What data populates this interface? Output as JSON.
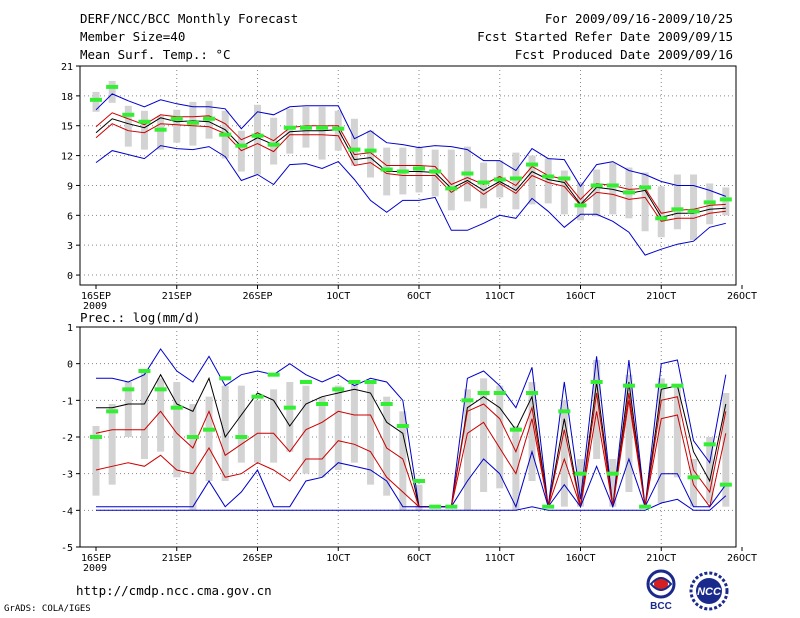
{
  "header": {
    "title": "DERF/NCC/BCC Monthly Forecast",
    "member_size": "Member Size=40",
    "variable": "Mean Surf. Temp.: °C",
    "period": "For 2009/09/16-2009/10/25",
    "started": "Fcst Started Refer Date 2009/09/15",
    "produced": "Fcst Produced Date 2009/09/16"
  },
  "footer": {
    "url": "http://cmdp.ncc.cma.gov.cn",
    "grads": "GrADS: COLA/IGES",
    "logo1_text": "BCC",
    "logo2_text": "NCC"
  },
  "colors": {
    "mean": "#000000",
    "quartile": "#cc0000",
    "extreme": "#0000cc",
    "box": "#d3d3d3",
    "median": "#33ee33"
  },
  "chart_data": [
    {
      "type": "line",
      "title": "Mean Surf. Temp.: °C",
      "x_ticks": [
        "16SEP",
        "21SEP",
        "26SEP",
        "1OCT",
        "6OCT",
        "11OCT",
        "16OCT",
        "21OCT",
        "26OCT"
      ],
      "x_tick_days": [
        0,
        5,
        10,
        15,
        20,
        25,
        30,
        35,
        40
      ],
      "year_label": "2009",
      "ylim": [
        -1,
        21
      ],
      "yticks": [
        0,
        3,
        6,
        9,
        12,
        15,
        18,
        21
      ],
      "series": [
        {
          "name": "max",
          "values": [
            11.3,
            12.5,
            12.1,
            11.7,
            13.0,
            12.7,
            12.6,
            12.9,
            11.9,
            9.5,
            10.1,
            9.1,
            11.1,
            11.2,
            10.7,
            11.4,
            9.6,
            7.5,
            6.3,
            7.5,
            7.5,
            7.8,
            4.5,
            4.5,
            5.2,
            6.0,
            5.7,
            7.7,
            6.4,
            4.8,
            6.1,
            6.1,
            5.4,
            4.3,
            2.0,
            2.6,
            3.1,
            3.4,
            4.8,
            5.2
          ]
        },
        {
          "name": "upper_quartile",
          "values": [
            13.8,
            15.2,
            14.5,
            14.3,
            15.2,
            15.1,
            15.0,
            14.9,
            14.2,
            12.5,
            13.2,
            12.4,
            14.1,
            14.1,
            14.1,
            14.0,
            11.0,
            11.3,
            10.2,
            10.0,
            10.0,
            10.0,
            8.3,
            9.3,
            8.1,
            9.2,
            8.2,
            10.0,
            9.3,
            8.9,
            7.0,
            8.3,
            8.1,
            7.6,
            7.8,
            5.4,
            5.7,
            5.7,
            6.2,
            6.4
          ]
        },
        {
          "name": "mean",
          "values": [
            14.3,
            15.7,
            15.2,
            14.8,
            15.8,
            15.4,
            15.5,
            15.4,
            14.6,
            12.9,
            13.8,
            13.1,
            14.4,
            14.5,
            14.5,
            14.6,
            11.6,
            11.8,
            10.4,
            10.4,
            10.4,
            10.3,
            8.7,
            9.5,
            8.5,
            9.4,
            8.5,
            10.4,
            9.6,
            9.3,
            7.1,
            8.8,
            8.6,
            8.2,
            8.5,
            5.8,
            6.2,
            6.2,
            6.6,
            6.7
          ]
        },
        {
          "name": "lower_quartile",
          "values": [
            14.9,
            16.3,
            15.7,
            15.1,
            16.1,
            15.9,
            15.9,
            16.0,
            15.2,
            13.6,
            14.3,
            13.5,
            14.8,
            15.0,
            15.0,
            15.0,
            12.1,
            12.3,
            11.0,
            11.0,
            11.0,
            10.9,
            9.1,
            9.8,
            9.1,
            9.9,
            9.0,
            10.9,
            10.0,
            9.6,
            7.6,
            9.2,
            9.0,
            8.6,
            8.7,
            6.2,
            6.5,
            6.6,
            7.0,
            7.1
          ]
        },
        {
          "name": "min",
          "values": [
            16.6,
            18.2,
            17.5,
            16.9,
            17.6,
            17.2,
            16.9,
            16.9,
            16.7,
            14.7,
            16.4,
            16.1,
            16.9,
            17.0,
            17.0,
            17.0,
            13.7,
            14.5,
            13.3,
            13.1,
            12.8,
            13.0,
            12.9,
            12.6,
            11.5,
            11.5,
            10.5,
            12.7,
            11.7,
            11.6,
            8.9,
            11.1,
            11.4,
            10.5,
            10.1,
            9.4,
            9.0,
            9.0,
            8.5,
            7.9
          ]
        },
        {
          "name": "median",
          "values": [
            17.6,
            18.9,
            16.1,
            15.4,
            14.6,
            15.7,
            15.3,
            15.7,
            14.1,
            13.0,
            14.0,
            13.1,
            14.8,
            14.8,
            14.8,
            14.7,
            12.6,
            12.5,
            10.6,
            10.4,
            10.7,
            10.4,
            8.7,
            10.2,
            9.3,
            9.6,
            9.7,
            11.1,
            9.9,
            9.7,
            7.0,
            9.0,
            9.0,
            8.3,
            8.8,
            5.7,
            6.6,
            6.4,
            7.3,
            7.6
          ]
        }
      ],
      "box_ranges": [
        [
          16.4,
          18.4
        ],
        [
          17.3,
          19.5
        ],
        [
          12.9,
          17.0
        ],
        [
          12.6,
          16.5
        ],
        [
          12.6,
          16.0
        ],
        [
          13.3,
          16.6
        ],
        [
          13.0,
          17.4
        ],
        [
          13.7,
          17.5
        ],
        [
          11.7,
          16.5
        ],
        [
          10.4,
          14.5
        ],
        [
          10.1,
          17.1
        ],
        [
          11.1,
          15.8
        ],
        [
          12.2,
          16.7
        ],
        [
          12.8,
          16.9
        ],
        [
          11.6,
          16.9
        ],
        [
          12.5,
          16.5
        ],
        [
          11.0,
          15.7
        ],
        [
          9.8,
          14.5
        ],
        [
          8.0,
          12.8
        ],
        [
          8.1,
          12.8
        ],
        [
          8.3,
          12.8
        ],
        [
          7.9,
          12.6
        ],
        [
          6.5,
          12.6
        ],
        [
          7.4,
          12.9
        ],
        [
          6.7,
          11.3
        ],
        [
          7.8,
          11.5
        ],
        [
          6.6,
          12.3
        ],
        [
          7.1,
          12.0
        ],
        [
          7.2,
          11.7
        ],
        [
          6.1,
          10.5
        ],
        [
          5.5,
          9.3
        ],
        [
          5.9,
          10.6
        ],
        [
          6.1,
          11.3
        ],
        [
          5.7,
          10.8
        ],
        [
          4.4,
          10.3
        ],
        [
          3.8,
          8.9
        ],
        [
          4.6,
          10.1
        ],
        [
          3.5,
          10.1
        ],
        [
          5.1,
          9.2
        ],
        [
          6.0,
          8.8
        ]
      ]
    },
    {
      "type": "line",
      "title": "Prec.: log(mm/d)",
      "x_ticks": [
        "16SEP",
        "21SEP",
        "26SEP",
        "1OCT",
        "6OCT",
        "11OCT",
        "16OCT",
        "21OCT",
        "26OCT"
      ],
      "x_tick_days": [
        0,
        5,
        10,
        15,
        20,
        25,
        30,
        35,
        40
      ],
      "year_label": "2009",
      "ylim": [
        -5,
        1
      ],
      "yticks": [
        -5,
        -4,
        -3,
        -2,
        -1,
        0,
        1
      ],
      "series": [
        {
          "name": "max",
          "values": [
            -0.4,
            -0.4,
            -0.5,
            -0.3,
            0.4,
            -0.2,
            -0.5,
            0.2,
            -0.6,
            -0.3,
            -0.2,
            -0.3,
            0.0,
            -0.3,
            -0.5,
            -0.3,
            -0.6,
            -0.4,
            -0.5,
            -1.0,
            -3.9,
            -3.9,
            -3.9,
            -0.4,
            -0.2,
            -0.6,
            -1.2,
            -0.1,
            -3.9,
            -0.5,
            -3.7,
            0.2,
            -3.9,
            0.1,
            -3.9,
            0.0,
            0.1,
            -2.1,
            -2.7,
            -0.3
          ]
        },
        {
          "name": "mean",
          "values": [
            -1.2,
            -1.2,
            -1.1,
            -1.1,
            -0.3,
            -1.1,
            -1.3,
            -0.4,
            -2.0,
            -1.4,
            -0.8,
            -1.0,
            -1.7,
            -1.1,
            -0.9,
            -0.8,
            -0.7,
            -0.8,
            -1.6,
            -1.9,
            -3.9,
            -3.9,
            -3.9,
            -1.2,
            -0.9,
            -1.2,
            -1.8,
            -0.9,
            -3.9,
            -1.5,
            -3.9,
            -0.5,
            -3.9,
            -0.5,
            -3.9,
            -0.7,
            -0.6,
            -2.4,
            -3.2,
            -1.1
          ]
        },
        {
          "name": "upper_quartile",
          "values": [
            -1.9,
            -1.8,
            -1.8,
            -1.8,
            -1.3,
            -1.9,
            -2.3,
            -1.3,
            -2.5,
            -2.2,
            -1.9,
            -1.9,
            -2.4,
            -1.8,
            -1.6,
            -1.3,
            -1.4,
            -1.4,
            -2.3,
            -2.6,
            -3.9,
            -3.9,
            -3.9,
            -1.3,
            -1.1,
            -1.5,
            -2.4,
            -1.2,
            -3.9,
            -1.8,
            -3.9,
            -0.8,
            -3.9,
            -0.8,
            -3.9,
            -1.0,
            -0.9,
            -2.9,
            -3.5,
            -1.3
          ]
        },
        {
          "name": "lower_quartile",
          "values": [
            -2.9,
            -2.8,
            -2.7,
            -2.8,
            -2.5,
            -2.9,
            -3.0,
            -2.3,
            -3.1,
            -3.0,
            -2.7,
            -2.9,
            -3.2,
            -2.6,
            -2.6,
            -2.1,
            -2.2,
            -2.4,
            -3.1,
            -3.5,
            -3.9,
            -3.9,
            -3.9,
            -1.9,
            -1.6,
            -2.3,
            -3.0,
            -1.5,
            -3.9,
            -2.6,
            -3.9,
            -1.3,
            -3.9,
            -1.0,
            -3.9,
            -1.5,
            -1.4,
            -3.3,
            -3.9,
            -1.9
          ]
        },
        {
          "name": "min",
          "values": [
            -3.9,
            -3.9,
            -3.9,
            -3.9,
            -3.9,
            -3.9,
            -3.9,
            -3.2,
            -3.9,
            -3.5,
            -2.9,
            -3.9,
            -3.9,
            -3.2,
            -3.1,
            -2.7,
            -2.8,
            -2.9,
            -3.2,
            -3.9,
            -3.9,
            -3.9,
            -3.9,
            -3.2,
            -2.6,
            -3.0,
            -3.9,
            -2.4,
            -3.9,
            -3.3,
            -3.9,
            -2.8,
            -3.9,
            -2.6,
            -3.9,
            -3.0,
            -3.0,
            -3.9,
            -3.9,
            -3.3
          ]
        },
        {
          "name": "lower_bound",
          "values": [
            -4.0,
            -4.0,
            -4.0,
            -4.0,
            -4.0,
            -4.0,
            -4.0,
            -4.0,
            -4.0,
            -4.0,
            -4.0,
            -4.0,
            -4.0,
            -4.0,
            -4.0,
            -4.0,
            -4.0,
            -4.0,
            -4.0,
            -4.0,
            -4.0,
            -4.0,
            -4.0,
            -4.0,
            -4.0,
            -4.0,
            -4.0,
            -3.9,
            -4.0,
            -4.0,
            -4.0,
            -4.0,
            -4.0,
            -4.0,
            -4.0,
            -3.8,
            -3.7,
            -4.0,
            -4.0,
            -3.6
          ]
        },
        {
          "name": "median",
          "values": [
            -2.0,
            -1.3,
            -0.7,
            -0.2,
            -0.7,
            -1.2,
            -2.0,
            -1.8,
            -0.4,
            -2.0,
            -0.9,
            -0.3,
            -1.2,
            -0.5,
            -1.1,
            -0.7,
            -0.5,
            -0.5,
            -1.1,
            -1.7,
            -3.2,
            -3.9,
            -3.9,
            -1.0,
            -0.8,
            -0.8,
            -1.8,
            -0.8,
            -3.9,
            -1.3,
            -3.0,
            -0.5,
            -3.0,
            -0.6,
            -3.9,
            -0.6,
            -0.6,
            -3.1,
            -2.2,
            -3.3
          ]
        }
      ],
      "box_ranges": [
        [
          -3.6,
          -1.7
        ],
        [
          -3.3,
          -1.1
        ],
        [
          -2.0,
          -0.5
        ],
        [
          -2.6,
          -0.2
        ],
        [
          -2.4,
          -0.4
        ],
        [
          -3.1,
          -0.5
        ],
        [
          -4.0,
          -1.1
        ],
        [
          -3.2,
          -0.9
        ],
        [
          -3.2,
          -0.6
        ],
        [
          -2.7,
          -0.6
        ],
        [
          -2.7,
          -1.0
        ],
        [
          -2.7,
          -0.7
        ],
        [
          -2.4,
          -0.5
        ],
        [
          -3.0,
          -0.6
        ],
        [
          -3.1,
          -0.9
        ],
        [
          -2.9,
          -0.6
        ],
        [
          -2.7,
          -0.5
        ],
        [
          -3.3,
          -0.5
        ],
        [
          -3.6,
          -0.9
        ],
        [
          -4.0,
          -1.3
        ],
        [
          -4.0,
          -3.3
        ],
        [
          -3.9,
          -3.9
        ],
        [
          -3.9,
          -3.9
        ],
        [
          -4.0,
          -0.7
        ],
        [
          -3.5,
          -0.4
        ],
        [
          -3.4,
          -0.6
        ],
        [
          -4.0,
          -1.7
        ],
        [
          -3.2,
          -0.5
        ],
        [
          -3.9,
          -3.9
        ],
        [
          -3.9,
          -1.0
        ],
        [
          -3.9,
          -2.6
        ],
        [
          -2.6,
          0.1
        ],
        [
          -3.9,
          -2.6
        ],
        [
          -3.5,
          -0.3
        ],
        [
          -3.9,
          -3.9
        ],
        [
          -3.8,
          -0.4
        ],
        [
          -3.1,
          -0.6
        ],
        [
          -3.9,
          -2.6
        ],
        [
          -3.8,
          -2.0
        ],
        [
          -3.9,
          -0.8
        ]
      ]
    }
  ]
}
